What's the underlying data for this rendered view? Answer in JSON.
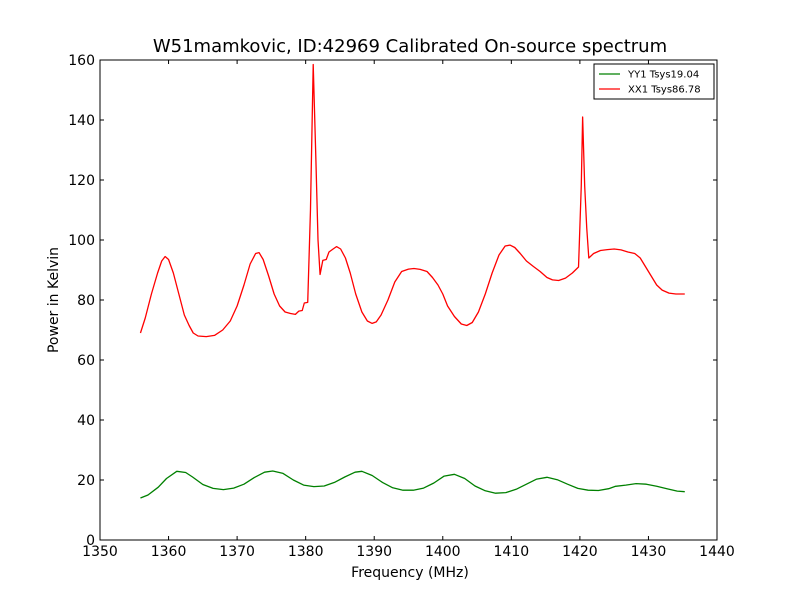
{
  "chart_data": {
    "type": "line",
    "title": "W51mamkovic, ID:42969 Calibrated On-source spectrum",
    "xlabel": "Frequency (MHz)",
    "ylabel": "Power in Kelvin",
    "xlim": [
      1350,
      1440
    ],
    "ylim": [
      0,
      160
    ],
    "xticks": [
      1350,
      1360,
      1370,
      1380,
      1390,
      1400,
      1410,
      1420,
      1430,
      1440
    ],
    "yticks": [
      0,
      20,
      40,
      60,
      80,
      100,
      120,
      140,
      160
    ],
    "grid": false,
    "legend_position": "top-right",
    "series": [
      {
        "name": "YY1 Tsys19.04",
        "color": "#008000",
        "points": [
          [
            1355.9,
            14.0
          ],
          [
            1357.0,
            15.0
          ],
          [
            1358.5,
            17.6
          ],
          [
            1359.7,
            20.5
          ],
          [
            1361.2,
            22.9
          ],
          [
            1362.5,
            22.5
          ],
          [
            1363.5,
            21.0
          ],
          [
            1365.0,
            18.5
          ],
          [
            1366.5,
            17.2
          ],
          [
            1368.0,
            16.8
          ],
          [
            1369.5,
            17.3
          ],
          [
            1371.0,
            18.6
          ],
          [
            1372.5,
            20.8
          ],
          [
            1374.0,
            22.6
          ],
          [
            1375.2,
            23.0
          ],
          [
            1376.7,
            22.2
          ],
          [
            1378.2,
            20.0
          ],
          [
            1379.7,
            18.3
          ],
          [
            1381.2,
            17.8
          ],
          [
            1382.7,
            18.0
          ],
          [
            1384.2,
            19.2
          ],
          [
            1385.7,
            21.0
          ],
          [
            1387.2,
            22.6
          ],
          [
            1388.2,
            22.9
          ],
          [
            1389.7,
            21.5
          ],
          [
            1391.2,
            19.2
          ],
          [
            1392.7,
            17.4
          ],
          [
            1394.2,
            16.6
          ],
          [
            1395.7,
            16.6
          ],
          [
            1397.2,
            17.3
          ],
          [
            1398.7,
            19.0
          ],
          [
            1400.2,
            21.3
          ],
          [
            1401.7,
            21.9
          ],
          [
            1403.2,
            20.5
          ],
          [
            1404.7,
            18.0
          ],
          [
            1406.2,
            16.4
          ],
          [
            1407.7,
            15.6
          ],
          [
            1409.2,
            15.8
          ],
          [
            1410.7,
            16.9
          ],
          [
            1412.2,
            18.6
          ],
          [
            1413.7,
            20.3
          ],
          [
            1415.2,
            20.9
          ],
          [
            1416.7,
            20.1
          ],
          [
            1418.2,
            18.6
          ],
          [
            1419.7,
            17.2
          ],
          [
            1421.2,
            16.6
          ],
          [
            1422.7,
            16.5
          ],
          [
            1424.2,
            17.1
          ],
          [
            1425.2,
            17.9
          ],
          [
            1426.7,
            18.3
          ],
          [
            1428.2,
            18.8
          ],
          [
            1429.7,
            18.6
          ],
          [
            1431.2,
            17.9
          ],
          [
            1432.7,
            17.1
          ],
          [
            1434.2,
            16.3
          ],
          [
            1435.3,
            16.1
          ]
        ]
      },
      {
        "name": "XX1 Tsys86.78",
        "color": "#ff0000",
        "points": [
          [
            1355.9,
            69.0
          ],
          [
            1356.6,
            74.0
          ],
          [
            1357.5,
            82.0
          ],
          [
            1358.4,
            89.0
          ],
          [
            1359.0,
            93.0
          ],
          [
            1359.5,
            94.5
          ],
          [
            1360.0,
            93.5
          ],
          [
            1360.7,
            89.0
          ],
          [
            1361.5,
            82.0
          ],
          [
            1362.3,
            75.0
          ],
          [
            1363.0,
            71.5
          ],
          [
            1363.6,
            69.0
          ],
          [
            1364.3,
            68.0
          ],
          [
            1365.5,
            67.8
          ],
          [
            1366.7,
            68.2
          ],
          [
            1367.9,
            70.0
          ],
          [
            1369.0,
            73.0
          ],
          [
            1370.0,
            78.0
          ],
          [
            1371.0,
            85.0
          ],
          [
            1371.9,
            92.0
          ],
          [
            1372.7,
            95.5
          ],
          [
            1373.2,
            95.8
          ],
          [
            1373.8,
            93.5
          ],
          [
            1374.6,
            88.0
          ],
          [
            1375.4,
            82.0
          ],
          [
            1376.2,
            78.0
          ],
          [
            1377.0,
            76.0
          ],
          [
            1377.8,
            75.5
          ],
          [
            1378.5,
            75.2
          ],
          [
            1379.0,
            76.3
          ],
          [
            1379.5,
            76.5
          ],
          [
            1379.8,
            79.0
          ],
          [
            1380.3,
            79.2
          ],
          [
            1380.7,
            110.0
          ],
          [
            1381.1,
            158.5
          ],
          [
            1381.5,
            126.0
          ],
          [
            1381.8,
            100.0
          ],
          [
            1382.1,
            88.5
          ],
          [
            1382.5,
            93.2
          ],
          [
            1383.0,
            93.5
          ],
          [
            1383.4,
            96.0
          ],
          [
            1384.0,
            97.0
          ],
          [
            1384.5,
            97.8
          ],
          [
            1385.1,
            97.0
          ],
          [
            1385.8,
            94.0
          ],
          [
            1386.5,
            89.0
          ],
          [
            1387.3,
            82.0
          ],
          [
            1388.2,
            76.0
          ],
          [
            1389.0,
            73.0
          ],
          [
            1389.7,
            72.2
          ],
          [
            1390.3,
            72.7
          ],
          [
            1391.0,
            75.0
          ],
          [
            1392.0,
            80.0
          ],
          [
            1393.0,
            86.0
          ],
          [
            1394.0,
            89.5
          ],
          [
            1395.0,
            90.3
          ],
          [
            1395.8,
            90.5
          ],
          [
            1396.7,
            90.2
          ],
          [
            1397.7,
            89.5
          ],
          [
            1398.5,
            87.5
          ],
          [
            1399.3,
            85.0
          ],
          [
            1400.0,
            82.0
          ],
          [
            1400.7,
            78.0
          ],
          [
            1401.7,
            74.5
          ],
          [
            1402.7,
            72.0
          ],
          [
            1403.5,
            71.5
          ],
          [
            1404.3,
            72.5
          ],
          [
            1405.2,
            76.0
          ],
          [
            1406.2,
            82.0
          ],
          [
            1407.2,
            89.0
          ],
          [
            1408.2,
            95.0
          ],
          [
            1409.1,
            98.0
          ],
          [
            1409.8,
            98.3
          ],
          [
            1410.5,
            97.5
          ],
          [
            1411.3,
            95.5
          ],
          [
            1412.2,
            93.0
          ],
          [
            1413.2,
            91.2
          ],
          [
            1414.2,
            89.5
          ],
          [
            1415.2,
            87.5
          ],
          [
            1416.0,
            86.7
          ],
          [
            1416.9,
            86.5
          ],
          [
            1417.9,
            87.3
          ],
          [
            1418.9,
            89.0
          ],
          [
            1419.8,
            91.0
          ],
          [
            1420.2,
            118.0
          ],
          [
            1420.4,
            141.0
          ],
          [
            1420.7,
            118.0
          ],
          [
            1421.0,
            104.0
          ],
          [
            1421.3,
            94.0
          ],
          [
            1422.0,
            95.5
          ],
          [
            1423.0,
            96.5
          ],
          [
            1424.0,
            96.8
          ],
          [
            1425.0,
            97.0
          ],
          [
            1426.0,
            96.7
          ],
          [
            1427.0,
            96.0
          ],
          [
            1428.0,
            95.5
          ],
          [
            1428.8,
            94.0
          ],
          [
            1429.6,
            91.0
          ],
          [
            1430.4,
            88.0
          ],
          [
            1431.2,
            85.0
          ],
          [
            1432.0,
            83.3
          ],
          [
            1433.0,
            82.3
          ],
          [
            1434.0,
            82.0
          ],
          [
            1435.3,
            82.0
          ]
        ]
      }
    ]
  }
}
